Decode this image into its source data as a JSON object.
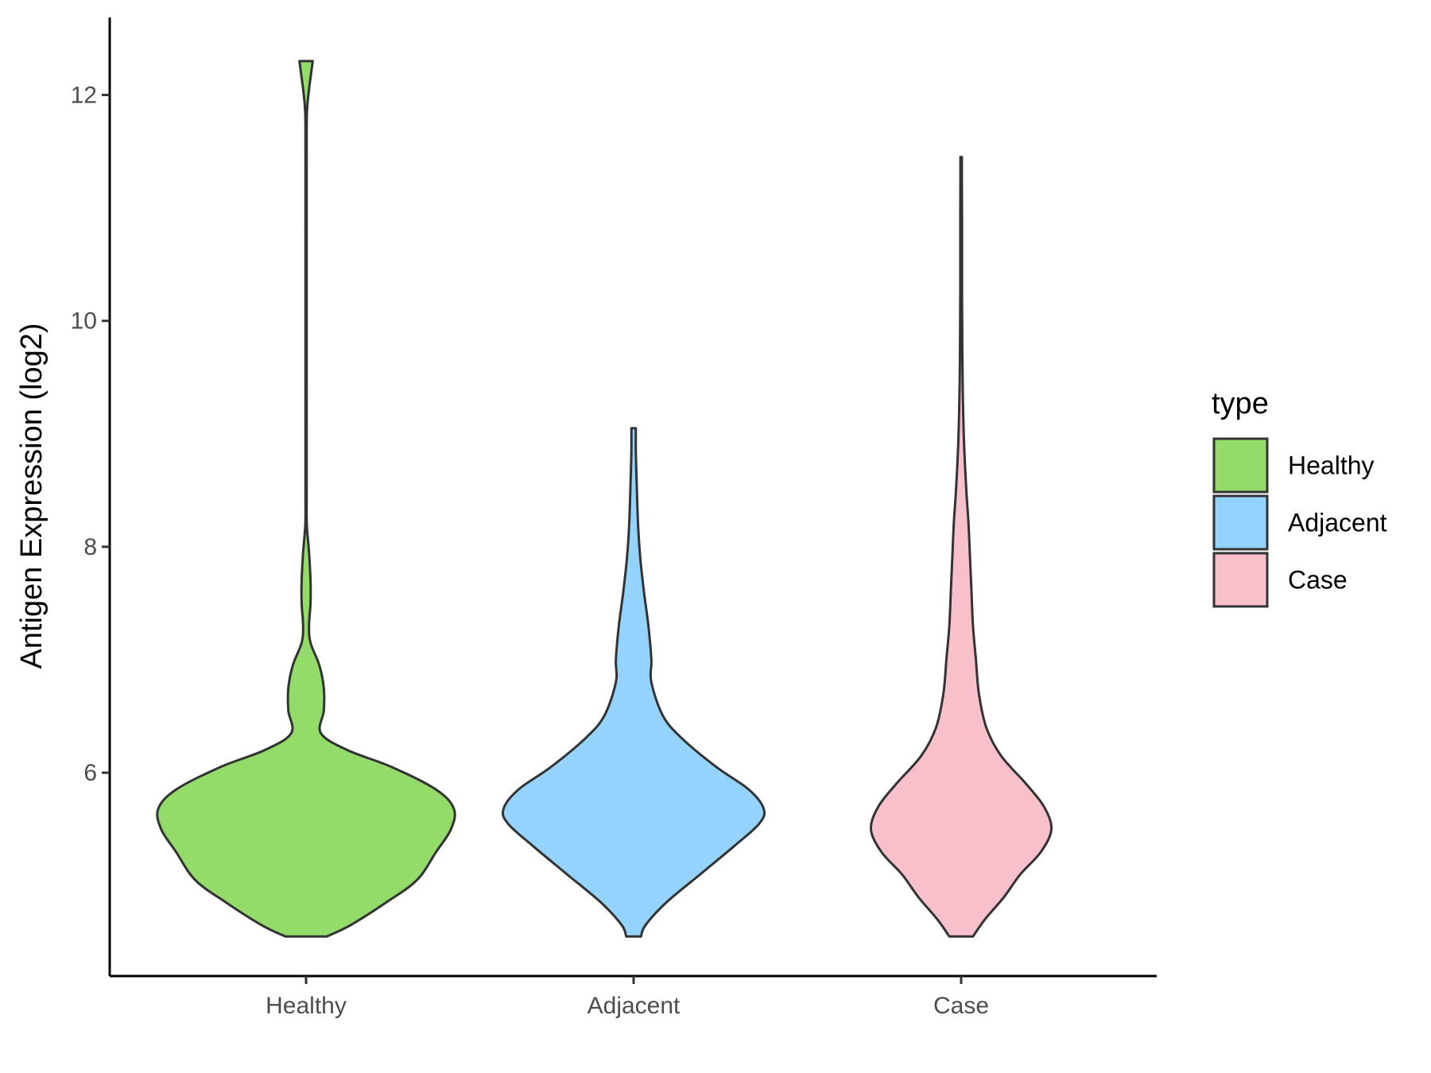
{
  "chart_data": {
    "type": "violin",
    "title": "",
    "xlabel": "",
    "ylabel": "Antigen Expression (log2)",
    "categories": [
      "Healthy",
      "Adjacent",
      "Case"
    ],
    "ylim": [
      4.2,
      12.7
    ],
    "y_ticks": [
      6,
      8,
      10,
      12
    ],
    "y_tick_labels": [
      "6",
      "8",
      "10",
      "12"
    ],
    "grid": false,
    "legend": {
      "title": "type",
      "placement": "right",
      "entries": [
        {
          "label": "Healthy",
          "color": "#93dc6a"
        },
        {
          "label": "Adjacent",
          "color": "#93d3fd"
        },
        {
          "label": "Case",
          "color": "#f8c0cb"
        }
      ]
    },
    "series": [
      {
        "category": "Healthy",
        "color": "#93dc6a",
        "density_profile": [
          [
            4.55,
            0.14
          ],
          [
            4.65,
            0.3
          ],
          [
            4.85,
            0.54
          ],
          [
            5.05,
            0.75
          ],
          [
            5.3,
            0.88
          ],
          [
            5.5,
            0.98
          ],
          [
            5.68,
            1.0
          ],
          [
            5.85,
            0.88
          ],
          [
            6.05,
            0.58
          ],
          [
            6.2,
            0.28
          ],
          [
            6.35,
            0.1
          ],
          [
            6.55,
            0.12
          ],
          [
            6.75,
            0.12
          ],
          [
            6.95,
            0.09
          ],
          [
            7.15,
            0.03
          ],
          [
            7.3,
            0.02
          ],
          [
            7.5,
            0.03
          ],
          [
            7.7,
            0.03
          ],
          [
            7.95,
            0.02
          ],
          [
            8.2,
            0.005
          ],
          [
            8.5,
            0.004
          ],
          [
            9.5,
            0.004
          ],
          [
            10.5,
            0.004
          ],
          [
            11.5,
            0.004
          ],
          [
            11.85,
            0.006
          ],
          [
            12.05,
            0.02
          ],
          [
            12.2,
            0.035
          ],
          [
            12.3,
            0.045
          ]
        ]
      },
      {
        "category": "Adjacent",
        "color": "#93d3fd",
        "density_profile": [
          [
            4.55,
            0.05
          ],
          [
            4.65,
            0.08
          ],
          [
            4.85,
            0.22
          ],
          [
            5.1,
            0.45
          ],
          [
            5.35,
            0.68
          ],
          [
            5.55,
            0.85
          ],
          [
            5.68,
            0.88
          ],
          [
            5.85,
            0.78
          ],
          [
            6.05,
            0.56
          ],
          [
            6.3,
            0.33
          ],
          [
            6.5,
            0.2
          ],
          [
            6.8,
            0.12
          ],
          [
            7.0,
            0.12
          ],
          [
            7.3,
            0.1
          ],
          [
            7.6,
            0.07
          ],
          [
            7.9,
            0.045
          ],
          [
            8.2,
            0.03
          ],
          [
            8.6,
            0.02
          ],
          [
            8.85,
            0.015
          ],
          [
            9.05,
            0.015
          ]
        ]
      },
      {
        "category": "Case",
        "color": "#f8c0cb",
        "density_profile": [
          [
            4.55,
            0.08
          ],
          [
            4.7,
            0.16
          ],
          [
            4.9,
            0.29
          ],
          [
            5.1,
            0.4
          ],
          [
            5.3,
            0.54
          ],
          [
            5.5,
            0.61
          ],
          [
            5.7,
            0.56
          ],
          [
            5.9,
            0.44
          ],
          [
            6.15,
            0.27
          ],
          [
            6.4,
            0.17
          ],
          [
            6.7,
            0.12
          ],
          [
            7.0,
            0.1
          ],
          [
            7.3,
            0.08
          ],
          [
            7.6,
            0.07
          ],
          [
            7.9,
            0.06
          ],
          [
            8.2,
            0.05
          ],
          [
            8.5,
            0.035
          ],
          [
            8.9,
            0.02
          ],
          [
            9.3,
            0.012
          ],
          [
            9.7,
            0.008
          ],
          [
            10.2,
            0.006
          ],
          [
            10.9,
            0.006
          ],
          [
            11.2,
            0.005
          ],
          [
            11.45,
            0.005
          ]
        ]
      }
    ]
  }
}
